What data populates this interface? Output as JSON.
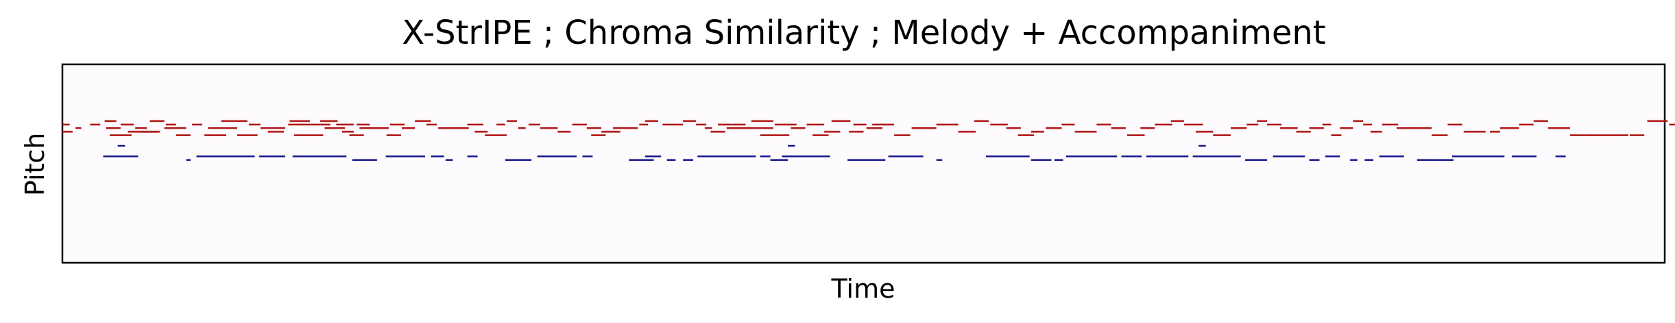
{
  "chart_data": {
    "type": "piano-roll",
    "title": "X-StrIPE ; Chroma Similarity ; Melody + Accompaniment",
    "xlabel": "Time",
    "ylabel": "Pitch",
    "xticks": "none",
    "yticks": "none",
    "grid": false,
    "xlim": [
      0,
      2200
    ],
    "ylim": [
      40,
      96
    ],
    "background": "#fdfbfd",
    "series": [
      {
        "role": "melody",
        "color": "#b01818",
        "notes": [
          [
            0,
            10,
            79
          ],
          [
            0,
            14,
            77
          ],
          [
            18,
            8,
            78
          ],
          [
            38,
            14,
            79
          ],
          [
            58,
            16,
            80
          ],
          [
            80,
            18,
            79
          ],
          [
            100,
            16,
            78
          ],
          [
            120,
            20,
            80
          ],
          [
            142,
            14,
            79
          ],
          [
            60,
            20,
            78
          ],
          [
            90,
            40,
            77
          ],
          [
            140,
            30,
            78
          ],
          [
            178,
            14,
            79
          ],
          [
            200,
            40,
            78
          ],
          [
            65,
            30,
            76
          ],
          [
            110,
            24,
            77
          ],
          [
            156,
            20,
            76
          ],
          [
            195,
            30,
            76
          ],
          [
            240,
            28,
            76
          ],
          [
            218,
            36,
            80
          ],
          [
            256,
            16,
            79
          ],
          [
            272,
            34,
            78
          ],
          [
            310,
            30,
            79
          ],
          [
            282,
            22,
            77
          ],
          [
            312,
            28,
            80
          ],
          [
            340,
            28,
            79
          ],
          [
            354,
            24,
            80
          ],
          [
            318,
            40,
            76
          ],
          [
            360,
            28,
            78
          ],
          [
            384,
            16,
            77
          ],
          [
            404,
            18,
            79
          ],
          [
            376,
            24,
            79
          ],
          [
            394,
            20,
            76
          ],
          [
            408,
            40,
            78
          ],
          [
            450,
            20,
            79
          ],
          [
            445,
            20,
            76
          ],
          [
            466,
            18,
            78
          ],
          [
            484,
            22,
            80
          ],
          [
            500,
            14,
            79
          ],
          [
            516,
            30,
            78
          ],
          [
            540,
            18,
            78
          ],
          [
            556,
            22,
            79
          ],
          [
            566,
            18,
            77
          ],
          [
            580,
            30,
            76
          ],
          [
            596,
            12,
            79
          ],
          [
            610,
            14,
            80
          ],
          [
            626,
            10,
            78
          ],
          [
            640,
            16,
            79
          ],
          [
            656,
            24,
            78
          ],
          [
            680,
            18,
            77
          ],
          [
            700,
            20,
            79
          ],
          [
            720,
            20,
            78
          ],
          [
            740,
            26,
            77
          ],
          [
            726,
            20,
            76
          ],
          [
            756,
            34,
            78
          ],
          [
            792,
            12,
            79
          ],
          [
            800,
            18,
            80
          ],
          [
            824,
            28,
            79
          ],
          [
            852,
            18,
            80
          ],
          [
            870,
            14,
            79
          ],
          [
            882,
            10,
            78
          ],
          [
            890,
            20,
            77
          ],
          [
            900,
            20,
            79
          ],
          [
            912,
            30,
            78
          ],
          [
            940,
            36,
            78
          ],
          [
            920,
            18,
            79
          ],
          [
            936,
            10,
            78
          ],
          [
            946,
            30,
            80
          ],
          [
            978,
            30,
            79
          ],
          [
            958,
            40,
            76
          ],
          [
            1000,
            20,
            78
          ],
          [
            1022,
            24,
            79
          ],
          [
            1046,
            22,
            77
          ],
          [
            1030,
            22,
            76
          ],
          [
            1056,
            26,
            80
          ],
          [
            1086,
            18,
            79
          ],
          [
            1104,
            22,
            78
          ],
          [
            1080,
            20,
            77
          ],
          [
            1112,
            30,
            79
          ],
          [
            1142,
            22,
            76
          ],
          [
            1166,
            34,
            78
          ],
          [
            1200,
            30,
            79
          ],
          [
            1230,
            24,
            77
          ],
          [
            1252,
            20,
            80
          ],
          [
            1274,
            24,
            79
          ],
          [
            1296,
            20,
            78
          ],
          [
            1312,
            22,
            76
          ],
          [
            1330,
            18,
            77
          ],
          [
            1350,
            22,
            78
          ],
          [
            1372,
            18,
            79
          ],
          [
            1390,
            30,
            77
          ],
          [
            1420,
            20,
            79
          ],
          [
            1440,
            20,
            78
          ],
          [
            1462,
            24,
            76
          ],
          [
            1480,
            20,
            78
          ],
          [
            1500,
            24,
            79
          ],
          [
            1522,
            18,
            80
          ],
          [
            1540,
            26,
            79
          ],
          [
            1556,
            24,
            77
          ],
          [
            1580,
            24,
            76
          ],
          [
            1604,
            22,
            78
          ],
          [
            1626,
            16,
            79
          ],
          [
            1640,
            14,
            80
          ],
          [
            1654,
            20,
            79
          ],
          [
            1672,
            24,
            78
          ],
          [
            1694,
            20,
            77
          ],
          [
            1712,
            20,
            78
          ],
          [
            1730,
            12,
            79
          ],
          [
            1742,
            14,
            76
          ],
          [
            1754,
            18,
            78
          ],
          [
            1772,
            14,
            80
          ],
          [
            1786,
            12,
            79
          ],
          [
            1796,
            16,
            77
          ],
          [
            1812,
            22,
            79
          ],
          [
            1832,
            20,
            78
          ],
          [
            1850,
            30,
            78
          ],
          [
            1880,
            22,
            76
          ],
          [
            1902,
            20,
            79
          ],
          [
            1924,
            30,
            77
          ],
          [
            1960,
            14,
            77
          ],
          [
            1974,
            26,
            78
          ],
          [
            2000,
            20,
            79
          ],
          [
            2020,
            20,
            80
          ],
          [
            2040,
            30,
            78
          ],
          [
            2070,
            20,
            76
          ],
          [
            2090,
            60,
            76
          ],
          [
            2152,
            20,
            76
          ],
          [
            2176,
            28,
            80
          ],
          [
            2206,
            18,
            79
          ],
          [
            2224,
            14,
            78
          ],
          [
            2240,
            50,
            77
          ],
          [
            2290,
            40,
            76
          ],
          [
            2330,
            24,
            80
          ]
        ]
      },
      {
        "role": "accompaniment",
        "color": "#1a1a8e",
        "notes": [
          [
            76,
            10,
            73
          ],
          [
            56,
            48,
            70
          ],
          [
            170,
            6,
            69
          ],
          [
            184,
            80,
            70
          ],
          [
            270,
            36,
            70
          ],
          [
            316,
            74,
            70
          ],
          [
            398,
            34,
            69
          ],
          [
            444,
            54,
            70
          ],
          [
            506,
            18,
            70
          ],
          [
            526,
            10,
            69
          ],
          [
            556,
            14,
            70
          ],
          [
            608,
            36,
            69
          ],
          [
            652,
            54,
            70
          ],
          [
            714,
            14,
            70
          ],
          [
            778,
            34,
            69
          ],
          [
            800,
            22,
            70
          ],
          [
            830,
            12,
            69
          ],
          [
            852,
            14,
            69
          ],
          [
            872,
            80,
            70
          ],
          [
            958,
            14,
            70
          ],
          [
            972,
            24,
            69
          ],
          [
            996,
            10,
            73
          ],
          [
            988,
            66,
            70
          ],
          [
            1078,
            52,
            69
          ],
          [
            1134,
            48,
            70
          ],
          [
            1200,
            8,
            69
          ],
          [
            1268,
            60,
            70
          ],
          [
            1330,
            28,
            69
          ],
          [
            1362,
            12,
            69
          ],
          [
            1378,
            70,
            70
          ],
          [
            1454,
            28,
            70
          ],
          [
            1488,
            58,
            70
          ],
          [
            1560,
            10,
            73
          ],
          [
            1552,
            66,
            70
          ],
          [
            1624,
            30,
            69
          ],
          [
            1662,
            44,
            70
          ],
          [
            1712,
            14,
            69
          ],
          [
            1734,
            20,
            70
          ],
          [
            1768,
            10,
            69
          ],
          [
            1788,
            12,
            69
          ],
          [
            1808,
            34,
            70
          ],
          [
            1860,
            30,
            69
          ],
          [
            1890,
            20,
            69
          ],
          [
            1908,
            72,
            70
          ],
          [
            1990,
            34,
            70
          ],
          [
            2050,
            14,
            70
          ]
        ]
      }
    ]
  }
}
